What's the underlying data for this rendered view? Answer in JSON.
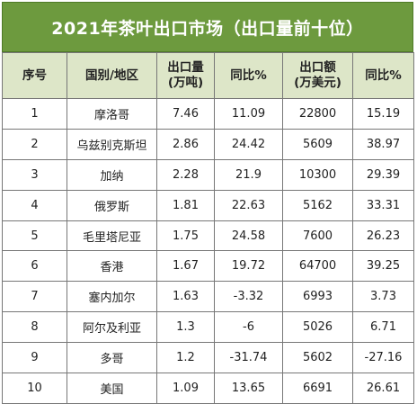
{
  "title": "2021年茶叶出口市场（出口量前十位）",
  "headers": {
    "rank": "序号",
    "country": "国别/地区",
    "volume_l1": "出口量",
    "volume_l2": "(万吨)",
    "yoy1": "同比%",
    "value_l1": "出口额",
    "value_l2": "(万美元)",
    "yoy2": "同比%"
  },
  "rows": [
    {
      "rank": "1",
      "country": "摩洛哥",
      "volume": "7.46",
      "yoy1": "11.09",
      "value": "22800",
      "yoy2": "15.19"
    },
    {
      "rank": "2",
      "country": "乌兹别克斯坦",
      "volume": "2.86",
      "yoy1": "24.42",
      "value": "5609",
      "yoy2": "38.97"
    },
    {
      "rank": "3",
      "country": "加纳",
      "volume": "2.28",
      "yoy1": "21.9",
      "value": "10300",
      "yoy2": "29.39"
    },
    {
      "rank": "4",
      "country": "俄罗斯",
      "volume": "1.81",
      "yoy1": "22.63",
      "value": "5162",
      "yoy2": "33.31"
    },
    {
      "rank": "5",
      "country": "毛里塔尼亚",
      "volume": "1.75",
      "yoy1": "24.58",
      "value": "7600",
      "yoy2": "26.23"
    },
    {
      "rank": "6",
      "country": "香港",
      "volume": "1.67",
      "yoy1": "19.72",
      "value": "64700",
      "yoy2": "39.25"
    },
    {
      "rank": "7",
      "country": "塞内加尔",
      "volume": "1.63",
      "yoy1": "-3.32",
      "value": "6993",
      "yoy2": "3.73"
    },
    {
      "rank": "8",
      "country": "阿尔及利亚",
      "volume": "1.3",
      "yoy1": "-6",
      "value": "5026",
      "yoy2": "6.71"
    },
    {
      "rank": "9",
      "country": "多哥",
      "volume": "1.2",
      "yoy1": "-31.74",
      "value": "5602",
      "yoy2": "-27.16"
    },
    {
      "rank": "10",
      "country": "美国",
      "volume": "1.09",
      "yoy1": "13.65",
      "value": "6691",
      "yoy2": "26.61"
    }
  ]
}
